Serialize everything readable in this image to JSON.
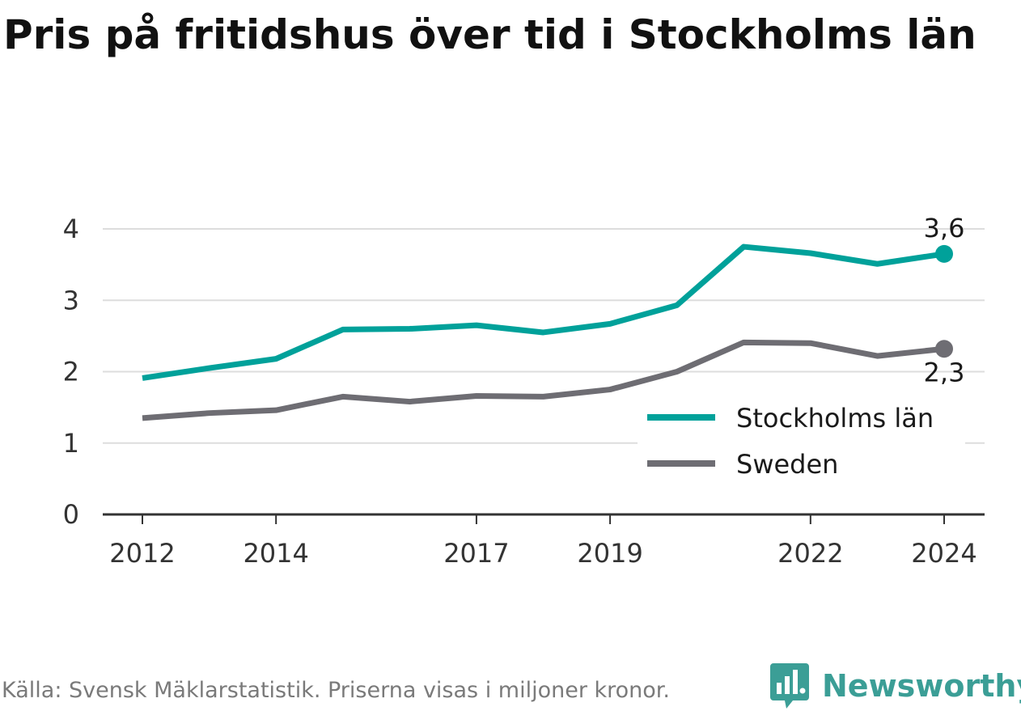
{
  "title": "Pris på fritidshus över tid i Stockholms län",
  "footer": {
    "source": "Källa: Svensk Mäklarstatistik. Priserna visas i miljoner kronor.",
    "brand": "Newsworthy"
  },
  "colors": {
    "stockholm": "#00a19a",
    "sweden": "#6e6d73",
    "grid": "#dddddd",
    "axis": "#333333",
    "brand": "#3b9e96"
  },
  "chart_data": {
    "type": "line",
    "title": "",
    "xlabel": "",
    "ylabel": "",
    "x": [
      2012,
      2013,
      2014,
      2015,
      2016,
      2017,
      2018,
      2019,
      2020,
      2021,
      2022,
      2023,
      2024
    ],
    "x_ticks": [
      "2012",
      "2014",
      "2017",
      "2019",
      "2022",
      "2024"
    ],
    "y_ticks": [
      "0",
      "1",
      "2",
      "3",
      "4"
    ],
    "ylim": [
      0,
      4
    ],
    "xlim": [
      2011.6,
      2024.6
    ],
    "grid": true,
    "legend_position": "bottom-right",
    "series": [
      {
        "name": "Stockholms län",
        "color_key": "stockholm",
        "values": [
          1.91,
          2.05,
          2.18,
          2.59,
          2.6,
          2.65,
          2.55,
          2.67,
          2.93,
          3.75,
          3.66,
          3.51,
          3.65
        ],
        "end_label": "3,6",
        "end_label_position": "above"
      },
      {
        "name": "Sweden",
        "color_key": "sweden",
        "values": [
          1.35,
          1.42,
          1.46,
          1.65,
          1.58,
          1.66,
          1.65,
          1.75,
          2.0,
          2.41,
          2.4,
          2.22,
          2.32
        ],
        "end_label": "2,3",
        "end_label_position": "below"
      }
    ]
  }
}
